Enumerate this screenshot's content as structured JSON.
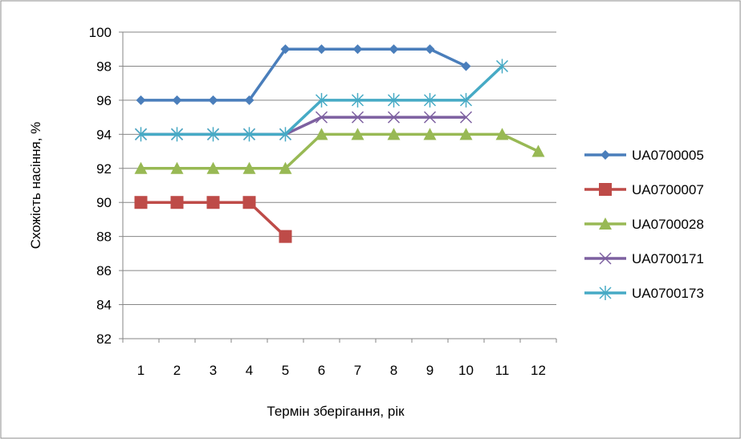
{
  "chart_data": {
    "type": "line",
    "title": "",
    "xlabel": "Термін зберігання, рік",
    "ylabel": "Схожість насіння, %",
    "categories": [
      "1",
      "2",
      "3",
      "4",
      "5",
      "6",
      "7",
      "8",
      "9",
      "10",
      "11",
      "12"
    ],
    "y_ticks": [
      "82",
      "84",
      "86",
      "88",
      "90",
      "92",
      "94",
      "96",
      "98",
      "100"
    ],
    "ylim": [
      82,
      100
    ],
    "grid": "horizontal",
    "legend_position": "right",
    "series": [
      {
        "name": "UA0700005",
        "color": "#4A7EBB",
        "marker": "diamond",
        "values": [
          96,
          96,
          96,
          96,
          99,
          99,
          99,
          99,
          99,
          98,
          null,
          null
        ]
      },
      {
        "name": "UA0700007",
        "color": "#BE4B48",
        "marker": "square",
        "values": [
          90,
          90,
          90,
          90,
          88,
          null,
          null,
          null,
          null,
          null,
          null,
          null
        ]
      },
      {
        "name": "UA0700028",
        "color": "#98B954",
        "marker": "triangle",
        "values": [
          92,
          92,
          92,
          92,
          92,
          94,
          94,
          94,
          94,
          94,
          94,
          93
        ]
      },
      {
        "name": "UA0700171",
        "color": "#7D60A0",
        "marker": "x",
        "values": [
          94,
          94,
          94,
          94,
          94,
          95,
          95,
          95,
          95,
          95,
          null,
          null
        ]
      },
      {
        "name": "UA0700173",
        "color": "#46AAC5",
        "marker": "asterisk",
        "values": [
          94,
          94,
          94,
          94,
          94,
          96,
          96,
          96,
          96,
          96,
          98,
          null
        ]
      }
    ]
  }
}
